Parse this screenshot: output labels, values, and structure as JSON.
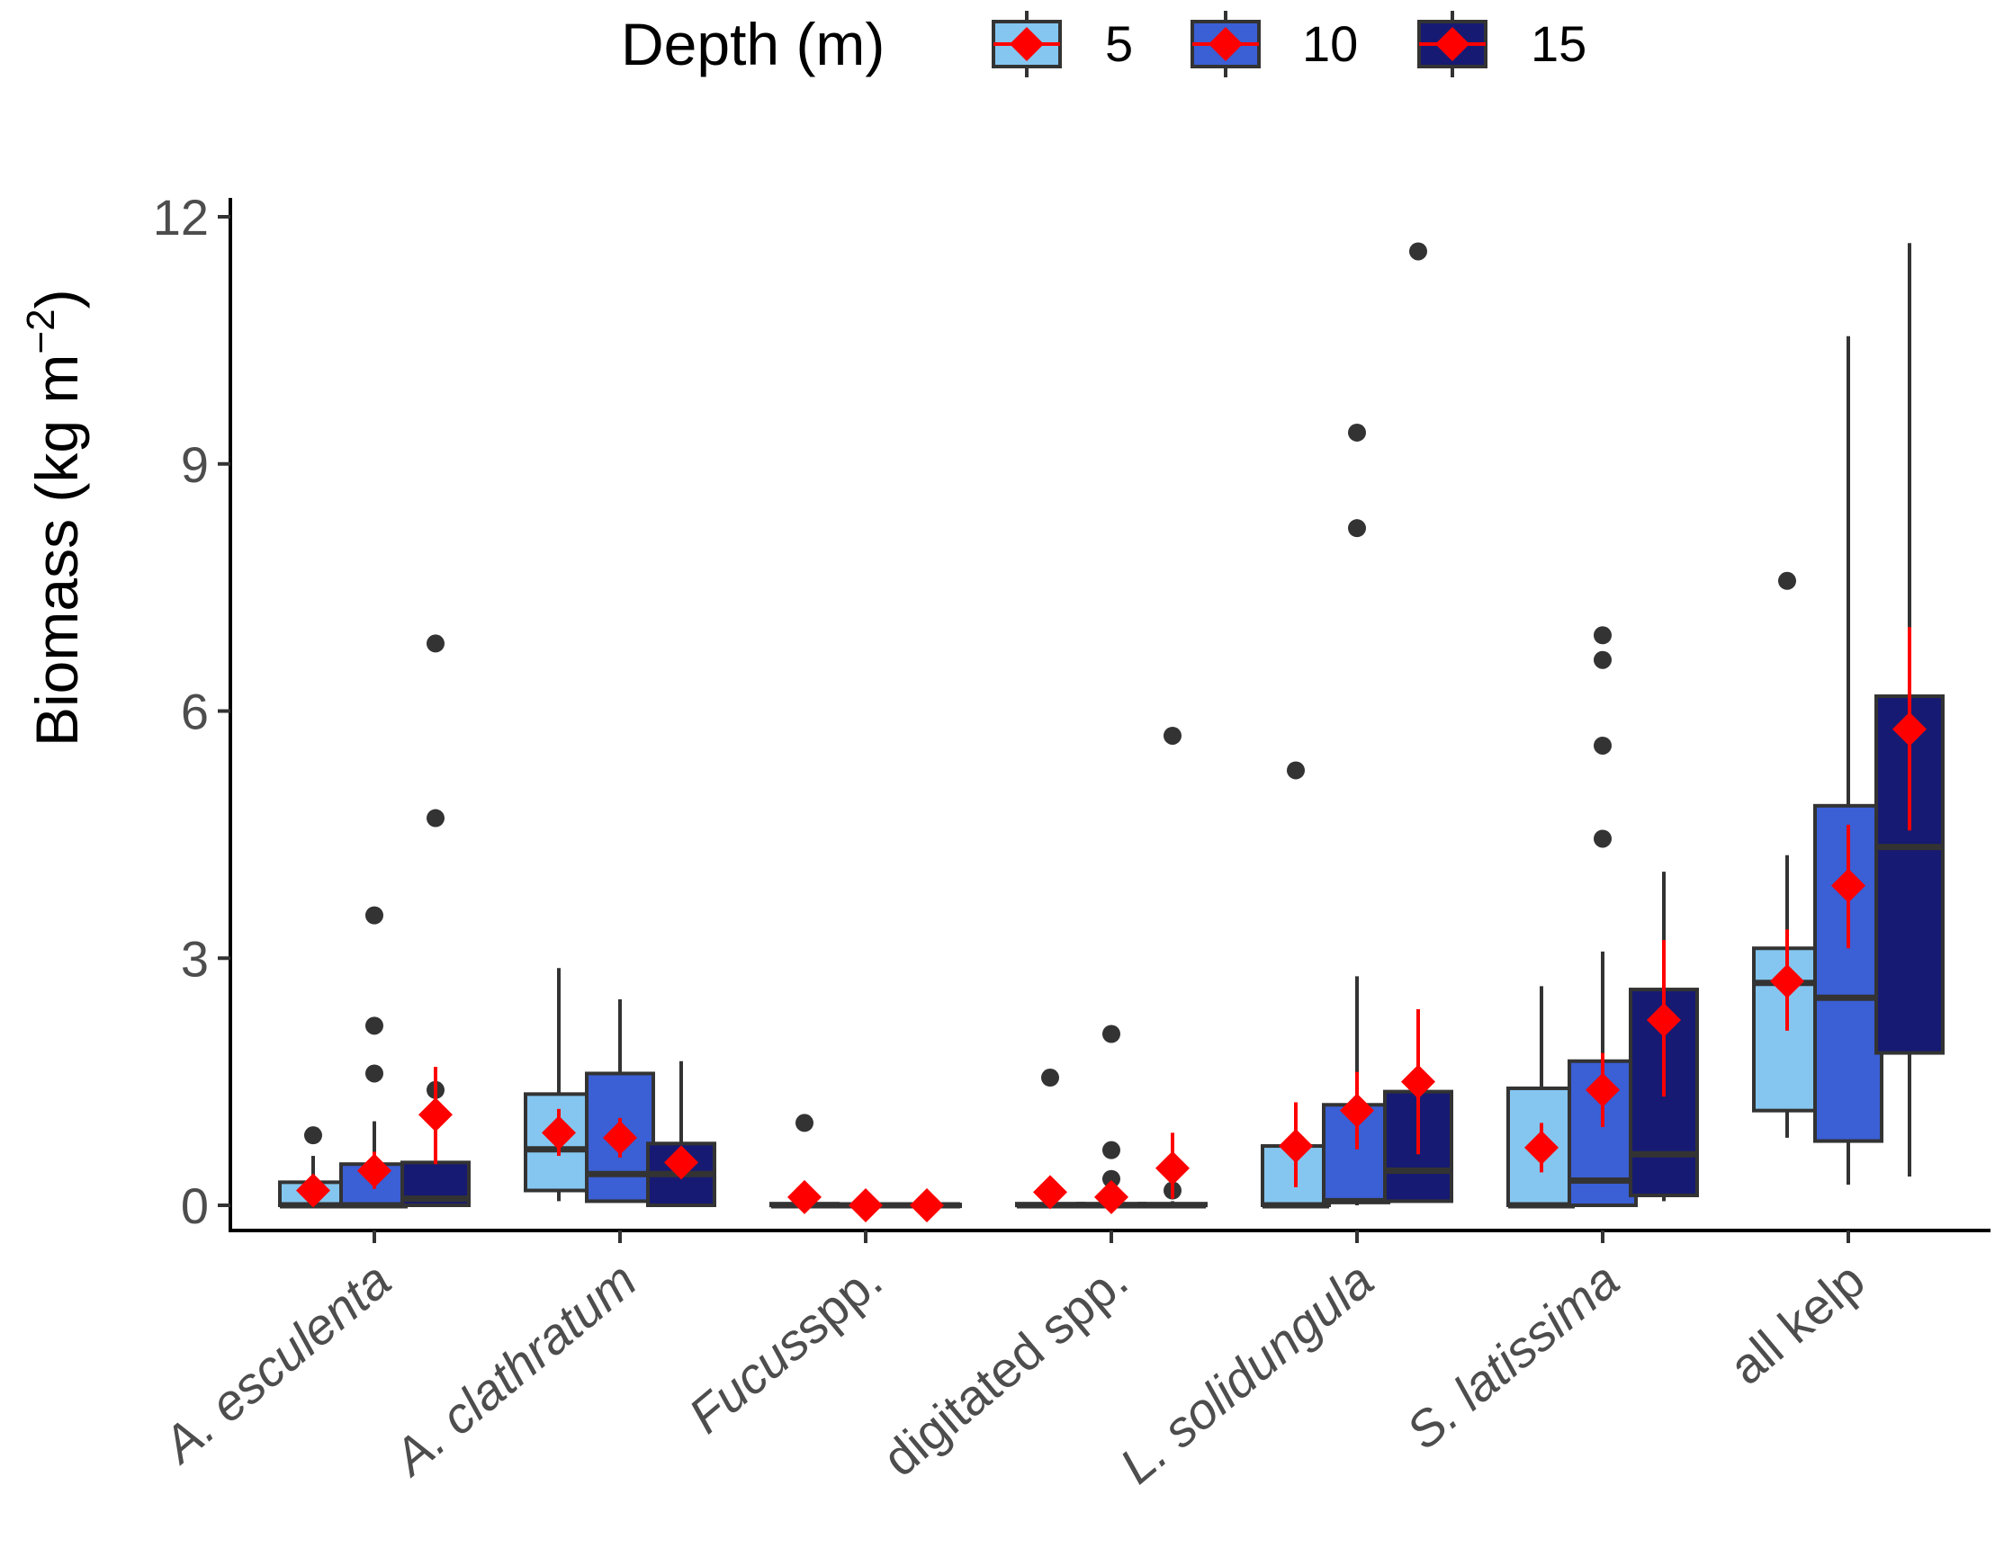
{
  "legend": {
    "title": "Depth (m)",
    "entries": [
      {
        "label": "5",
        "color": "#85c6f0"
      },
      {
        "label": "10",
        "color": "#3b5fd4"
      },
      {
        "label": "15",
        "color": "#171a72"
      }
    ]
  },
  "chart_data": {
    "type": "box",
    "title": "",
    "xlabel": "",
    "ylabel": "Biomass (kg m",
    "ylabel_sup": "−2",
    "ylabel_close": ")",
    "ylim": [
      -0.3,
      12.3
    ],
    "yticks": [
      0,
      3,
      6,
      9,
      12
    ],
    "ytick_labels": [
      "0",
      "3",
      "6",
      "9",
      "12"
    ],
    "categories": [
      "A. esculenta",
      "A. clathratum",
      "Fucus spp.",
      "digitated spp.",
      "L. solidungula",
      "S. latissima",
      "all kelp"
    ],
    "category_labels": [
      [
        {
          "t": "A. esculenta",
          "i": true
        }
      ],
      [
        {
          "t": "A. clathratum",
          "i": true
        }
      ],
      [
        {
          "t": "Fucus",
          "i": true
        },
        {
          "t": "spp.",
          "i": false
        }
      ],
      [
        {
          "t": "digitated spp.",
          "i": false
        }
      ],
      [
        {
          "t": "L. solidungula",
          "i": true
        }
      ],
      [
        {
          "t": "S. latissima",
          "i": true
        }
      ],
      [
        {
          "t": "all kelp",
          "i": false
        }
      ]
    ],
    "series": [
      {
        "name": "5",
        "color": "#85c6f0",
        "boxes": [
          {
            "lower": 0,
            "q1": 0,
            "median": 0,
            "q3": 0.28,
            "upper": 0.6,
            "outliers": [
              0.85
            ],
            "mean": 0.18,
            "mean_lo": 0.05,
            "mean_hi": 0.33
          },
          {
            "lower": 0.05,
            "q1": 0.18,
            "median": 0.68,
            "q3": 1.35,
            "upper": 2.88,
            "outliers": [],
            "mean": 0.88,
            "mean_lo": 0.6,
            "mean_hi": 1.17
          },
          {
            "lower": 0,
            "q1": 0,
            "median": 0,
            "q3": 0.02,
            "upper": 0.05,
            "outliers": [
              1.0
            ],
            "mean": 0.1,
            "mean_lo": 0.0,
            "mean_hi": 0.2
          },
          {
            "lower": 0,
            "q1": 0,
            "median": 0,
            "q3": 0.02,
            "upper": 0.05,
            "outliers": [
              1.55
            ],
            "mean": 0.16,
            "mean_lo": 0.02,
            "mean_hi": 0.3
          },
          {
            "lower": 0,
            "q1": 0,
            "median": 0,
            "q3": 0.72,
            "upper": 0.72,
            "outliers": [
              5.28
            ],
            "mean": 0.72,
            "mean_lo": 0.22,
            "mean_hi": 1.25
          },
          {
            "lower": 0,
            "q1": 0,
            "median": 0,
            "q3": 1.42,
            "upper": 2.66,
            "outliers": [],
            "mean": 0.7,
            "mean_lo": 0.4,
            "mean_hi": 1.0
          },
          {
            "lower": 0.82,
            "q1": 1.15,
            "median": 2.7,
            "q3": 3.12,
            "upper": 4.25,
            "outliers": [
              7.58
            ],
            "mean": 2.72,
            "mean_lo": 2.12,
            "mean_hi": 3.35
          }
        ]
      },
      {
        "name": "10",
        "color": "#3b5fd4",
        "boxes": [
          {
            "lower": 0,
            "q1": 0,
            "median": 0,
            "q3": 0.5,
            "upper": 1.02,
            "outliers": [
              1.6,
              2.18,
              3.52
            ],
            "mean": 0.42,
            "mean_lo": 0.2,
            "mean_hi": 0.65
          },
          {
            "lower": 0.05,
            "q1": 0.05,
            "median": 0.38,
            "q3": 1.6,
            "upper": 2.5,
            "outliers": [],
            "mean": 0.82,
            "mean_lo": 0.58,
            "mean_hi": 1.06
          },
          {
            "lower": 0,
            "q1": 0,
            "median": 0,
            "q3": 0.01,
            "upper": 0.02,
            "outliers": [],
            "mean": 0.0,
            "mean_lo": 0.0,
            "mean_hi": 0.0
          },
          {
            "lower": 0,
            "q1": 0,
            "median": 0,
            "q3": 0.02,
            "upper": 0.05,
            "outliers": [
              0.32,
              0.67,
              2.08
            ],
            "mean": 0.1,
            "mean_lo": 0.0,
            "mean_hi": 0.22
          },
          {
            "lower": 0,
            "q1": 0.05,
            "median": 0.05,
            "q3": 1.22,
            "upper": 2.78,
            "outliers": [
              8.22,
              9.38
            ],
            "mean": 1.15,
            "mean_lo": 0.68,
            "mean_hi": 1.62
          },
          {
            "lower": 0,
            "q1": 0,
            "median": 0.3,
            "q3": 1.75,
            "upper": 3.08,
            "outliers": [
              4.45,
              5.58,
              6.62,
              6.92
            ],
            "mean": 1.4,
            "mean_lo": 0.95,
            "mean_hi": 1.85
          },
          {
            "lower": 0.25,
            "q1": 0.78,
            "median": 2.52,
            "q3": 4.85,
            "upper": 10.55,
            "outliers": [],
            "mean": 3.88,
            "mean_lo": 3.12,
            "mean_hi": 4.62
          }
        ]
      },
      {
        "name": "15",
        "color": "#171a72",
        "boxes": [
          {
            "lower": 0,
            "q1": 0,
            "median": 0.08,
            "q3": 0.52,
            "upper": 1.25,
            "outliers": [
              1.4,
              4.7,
              6.82
            ],
            "mean": 1.1,
            "mean_lo": 0.5,
            "mean_hi": 1.68
          },
          {
            "lower": 0,
            "q1": 0,
            "median": 0.38,
            "q3": 0.75,
            "upper": 1.75,
            "outliers": [],
            "mean": 0.52,
            "mean_lo": 0.38,
            "mean_hi": 0.66
          },
          {
            "lower": 0,
            "q1": 0,
            "median": 0,
            "q3": 0.01,
            "upper": 0.02,
            "outliers": [],
            "mean": 0.0,
            "mean_lo": 0.0,
            "mean_hi": 0.0
          },
          {
            "lower": 0,
            "q1": 0,
            "median": 0,
            "q3": 0.02,
            "upper": 0.05,
            "outliers": [
              0.18,
              5.7
            ],
            "mean": 0.45,
            "mean_lo": 0.08,
            "mean_hi": 0.88
          },
          {
            "lower": 0.05,
            "q1": 0.05,
            "median": 0.42,
            "q3": 1.38,
            "upper": 1.38,
            "outliers": [
              11.58
            ],
            "mean": 1.5,
            "mean_lo": 0.62,
            "mean_hi": 2.38
          },
          {
            "lower": 0.05,
            "q1": 0.12,
            "median": 0.62,
            "q3": 2.62,
            "upper": 4.05,
            "outliers": [],
            "mean": 2.25,
            "mean_lo": 1.32,
            "mean_hi": 3.22
          },
          {
            "lower": 0.35,
            "q1": 1.85,
            "median": 4.35,
            "q3": 6.18,
            "upper": 11.68,
            "outliers": [],
            "mean": 5.78,
            "mean_lo": 4.55,
            "mean_hi": 7.02
          }
        ]
      }
    ]
  }
}
